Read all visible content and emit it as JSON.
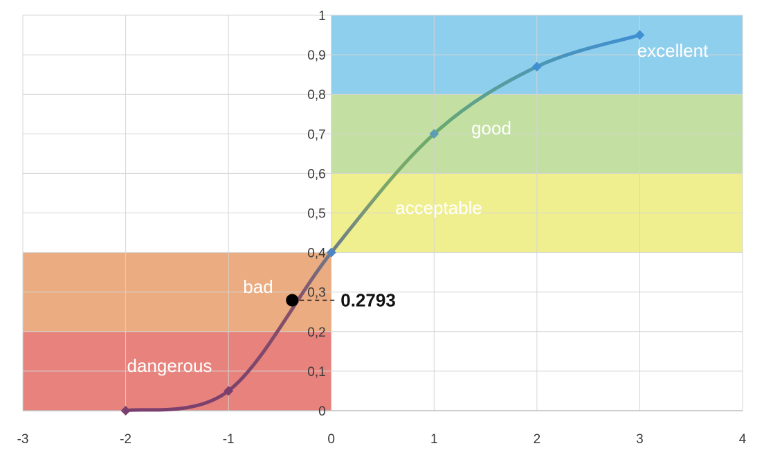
{
  "chart_data": {
    "type": "line",
    "xlim": [
      -3,
      4
    ],
    "ylim": [
      0,
      1
    ],
    "x_ticks": [
      "-3",
      "-2",
      "-1",
      "0",
      "1",
      "2",
      "3",
      "4"
    ],
    "y_ticks": [
      "0",
      "0,1",
      "0,2",
      "0,3",
      "0,4",
      "0,5",
      "0,6",
      "0,7",
      "0,8",
      "0,9",
      "1"
    ],
    "grid": true,
    "series": [
      {
        "x": [
          -2,
          -1,
          0,
          1,
          2,
          3
        ],
        "y": [
          0.0,
          0.05,
          0.4,
          0.7,
          0.87,
          0.95
        ]
      }
    ],
    "zones": [
      {
        "label": "excellent",
        "x": [
          0,
          4
        ],
        "y": [
          0.8,
          1.0
        ],
        "color": "#8ecfee"
      },
      {
        "label": "good",
        "x": [
          0,
          4
        ],
        "y": [
          0.6,
          0.8
        ],
        "color": "#c3e0a2"
      },
      {
        "label": "acceptable",
        "x": [
          0,
          4
        ],
        "y": [
          0.4,
          0.6
        ],
        "color": "#f0ef90"
      },
      {
        "label": "bad",
        "x": [
          -3,
          0
        ],
        "y": [
          0.2,
          0.4
        ],
        "color": "#eaac80"
      },
      {
        "label": "dangerous",
        "x": [
          -3,
          0
        ],
        "y": [
          0.0,
          0.2
        ],
        "color": "#e8827c"
      }
    ],
    "marked_point": {
      "x": -0.38,
      "y": 0.2793,
      "label": "0.2793"
    }
  }
}
